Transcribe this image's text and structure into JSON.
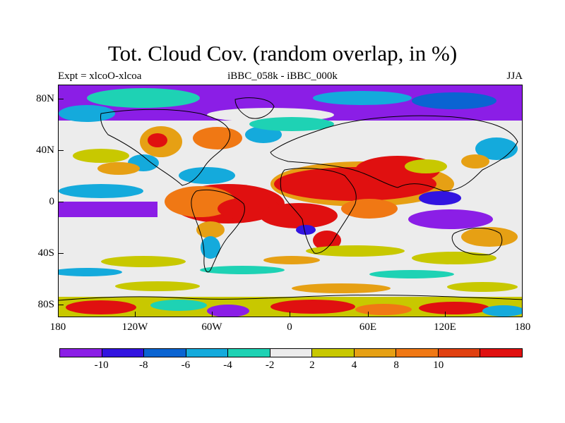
{
  "title": "Tot. Cloud Cov. (random overlap, in %)",
  "experiment_label": "Expt = xlcoO-xlcoa",
  "difference_label": "iBBC_058k - iBBC_000k",
  "season_label": "JJA",
  "map": {
    "background_color": "#ececec",
    "lat_ticks": [
      "80N",
      "40N",
      "0",
      "40S",
      "80S"
    ],
    "lon_ticks": [
      "180",
      "120W",
      "60W",
      "0",
      "60E",
      "120E",
      "180"
    ]
  },
  "colorbar": {
    "colors": [
      "#8b1ee6",
      "#3214e0",
      "#0a64d2",
      "#14aadc",
      "#1ed2b4",
      "#ececec",
      "#c8c800",
      "#e6a014",
      "#f07814",
      "#e04010",
      "#e01010"
    ],
    "labels": [
      "-10",
      "-8",
      "-6",
      "-4",
      "-2",
      "2",
      "4",
      "8",
      "10"
    ]
  }
}
